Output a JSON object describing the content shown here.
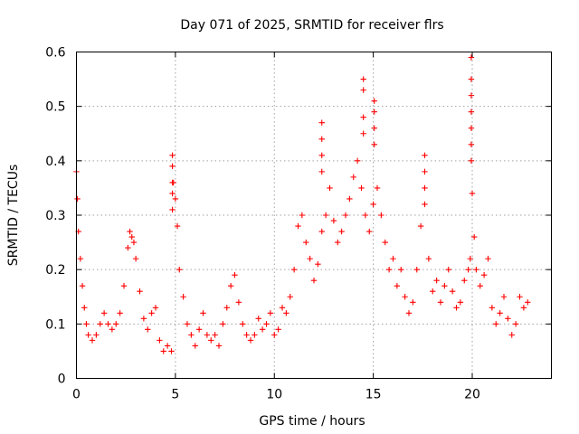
{
  "chart_data": {
    "type": "scatter",
    "title": "Day 071 of 2025, SRMTID for receiver flrs",
    "xlabel": "GPS time / hours",
    "ylabel": "SRMTID / TECUs",
    "xlim": [
      0,
      24
    ],
    "ylim": [
      0,
      0.6
    ],
    "xticks": [
      0,
      5,
      10,
      15,
      20
    ],
    "xtick_labels": [
      "0",
      "5",
      "10",
      "15",
      "20"
    ],
    "yticks": [
      0,
      0.1,
      0.2,
      0.3,
      0.4,
      0.5,
      0.6
    ],
    "ytick_labels": [
      "0",
      "0.1",
      "0.2",
      "0.3",
      "0.4",
      "0.5",
      "0.6"
    ],
    "grid": true,
    "marker": "+",
    "color": "#ff0000",
    "series": [
      {
        "name": "SRMTID",
        "x": [
          0.0,
          0.05,
          0.1,
          0.2,
          0.3,
          0.4,
          0.5,
          0.6,
          0.8,
          1.0,
          1.2,
          1.4,
          1.6,
          1.8,
          2.0,
          2.2,
          2.4,
          2.6,
          2.7,
          2.8,
          2.9,
          3.0,
          3.2,
          3.4,
          3.6,
          3.8,
          4.0,
          4.2,
          4.4,
          4.6,
          4.8,
          4.9,
          5.0,
          5.1,
          5.2,
          5.4,
          5.6,
          5.8,
          6.0,
          6.2,
          6.4,
          6.6,
          6.8,
          7.0,
          7.2,
          7.4,
          7.6,
          7.8,
          8.0,
          8.2,
          8.4,
          8.6,
          8.8,
          9.0,
          9.2,
          9.4,
          9.6,
          9.8,
          10.0,
          10.2,
          10.4,
          10.6,
          10.8,
          11.0,
          11.2,
          11.4,
          11.6,
          11.8,
          12.0,
          12.2,
          12.4,
          12.6,
          12.8,
          13.0,
          13.2,
          13.4,
          13.6,
          13.8,
          14.0,
          14.2,
          14.4,
          14.6,
          14.8,
          15.0,
          15.2,
          15.4,
          15.6,
          15.8,
          16.0,
          16.2,
          16.4,
          16.6,
          16.8,
          17.0,
          17.2,
          17.4,
          17.6,
          17.8,
          18.0,
          18.2,
          18.4,
          18.6,
          18.8,
          19.0,
          19.2,
          19.4,
          19.6,
          19.8,
          19.9,
          20.0,
          20.1,
          20.2,
          20.4,
          20.6,
          20.8,
          21.0,
          21.2,
          21.4,
          21.6,
          21.8,
          22.0,
          22.2,
          22.4,
          22.6,
          22.8
        ],
        "y": [
          0.38,
          0.33,
          0.27,
          0.22,
          0.17,
          0.13,
          0.1,
          0.08,
          0.07,
          0.08,
          0.1,
          0.12,
          0.1,
          0.09,
          0.1,
          0.12,
          0.17,
          0.24,
          0.27,
          0.26,
          0.25,
          0.22,
          0.16,
          0.11,
          0.09,
          0.12,
          0.13,
          0.07,
          0.05,
          0.06,
          0.05,
          0.36,
          0.33,
          0.28,
          0.2,
          0.15,
          0.1,
          0.08,
          0.06,
          0.09,
          0.12,
          0.08,
          0.07,
          0.08,
          0.06,
          0.1,
          0.13,
          0.17,
          0.19,
          0.14,
          0.1,
          0.08,
          0.07,
          0.08,
          0.11,
          0.09,
          0.1,
          0.12,
          0.08,
          0.09,
          0.13,
          0.12,
          0.15,
          0.2,
          0.28,
          0.3,
          0.25,
          0.22,
          0.18,
          0.21,
          0.27,
          0.3,
          0.35,
          0.29,
          0.25,
          0.27,
          0.3,
          0.33,
          0.37,
          0.4,
          0.35,
          0.3,
          0.27,
          0.32,
          0.35,
          0.3,
          0.25,
          0.2,
          0.22,
          0.17,
          0.2,
          0.15,
          0.12,
          0.14,
          0.2,
          0.28,
          0.32,
          0.22,
          0.16,
          0.18,
          0.14,
          0.17,
          0.2,
          0.16,
          0.13,
          0.14,
          0.18,
          0.2,
          0.22,
          0.34,
          0.26,
          0.2,
          0.17,
          0.19,
          0.22,
          0.13,
          0.1,
          0.12,
          0.15,
          0.11,
          0.08,
          0.1,
          0.15,
          0.13,
          0.14
        ]
      }
    ],
    "spikes": [
      {
        "x": 4.85,
        "y_values": [
          0.41,
          0.39,
          0.36,
          0.34,
          0.31
        ]
      },
      {
        "x": 12.4,
        "y_values": [
          0.47,
          0.44,
          0.41,
          0.38
        ]
      },
      {
        "x": 14.5,
        "y_values": [
          0.55,
          0.53,
          0.48,
          0.45
        ]
      },
      {
        "x": 15.05,
        "y_values": [
          0.51,
          0.49,
          0.46,
          0.43
        ]
      },
      {
        "x": 19.95,
        "y_values": [
          0.59,
          0.55,
          0.52,
          0.49,
          0.46,
          0.43,
          0.4
        ]
      },
      {
        "x": 17.6,
        "y_values": [
          0.41,
          0.38,
          0.35
        ]
      }
    ]
  }
}
